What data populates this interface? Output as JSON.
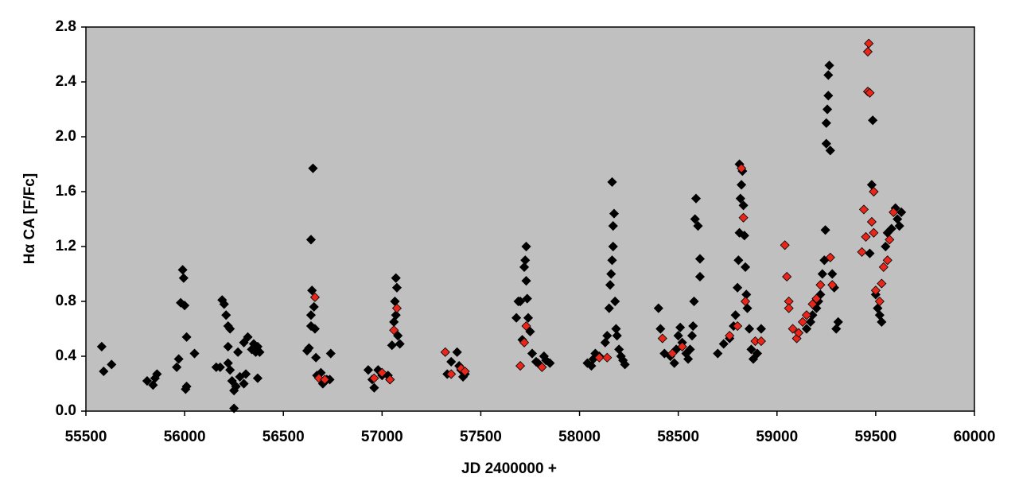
{
  "chart_data": {
    "type": "scatter",
    "x_label": "JD 2400000 +",
    "y_label": "Hα CA [F/Fc]",
    "xlim": [
      55500,
      60000
    ],
    "xticks": [
      55500,
      56000,
      56500,
      57000,
      57500,
      58000,
      58500,
      59000,
      59500,
      60000
    ],
    "ylim": [
      0,
      2.8
    ],
    "yticks": [
      {
        "value": 0,
        "label": "0.0"
      },
      0.4,
      0.8,
      1.2,
      1.6,
      {
        "value": 2,
        "label": "2.0"
      },
      2.4,
      2.8
    ],
    "background": "#c0c0c0",
    "series": [
      {
        "color": "#000000",
        "x": [
          55580,
          55590,
          55630,
          55810,
          55840,
          55860,
          55850,
          55960,
          55970,
          55980,
          55990,
          55995,
          56000,
          56010,
          56005,
          56010,
          56050,
          56160,
          56180,
          56190,
          56200,
          56210,
          56220,
          56230,
          56220,
          56230,
          56240,
          56250,
          56250,
          56260,
          56270,
          56280,
          56300,
          56310,
          56300,
          56320,
          56340,
          56350,
          56360,
          56370,
          56380,
          56370,
          56220,
          56620,
          56630,
          56640,
          56640,
          56645,
          56640,
          56650,
          56655,
          56660,
          56665,
          56670,
          56690,
          56700,
          56720,
          56740,
          56735,
          56930,
          56950,
          56960,
          56980,
          57000,
          57030,
          57040,
          57050,
          57060,
          57065,
          57070,
          57075,
          57070,
          57080,
          57090,
          57330,
          57350,
          57380,
          57390,
          57400,
          57410,
          57420,
          57680,
          57690,
          57700,
          57710,
          57720,
          57725,
          57730,
          57730,
          57735,
          57740,
          57750,
          57760,
          57780,
          57790,
          57820,
          57830,
          57850,
          58040,
          58060,
          58070,
          58080,
          58100,
          58130,
          58140,
          58150,
          58155,
          58160,
          58165,
          58170,
          58170,
          58175,
          58165,
          58180,
          58185,
          58190,
          58200,
          58210,
          58220,
          58230,
          58400,
          58410,
          58430,
          58460,
          58480,
          58490,
          58500,
          58510,
          58520,
          58540,
          58550,
          58560,
          58570,
          58575,
          58580,
          58585,
          58590,
          58600,
          58610,
          58610,
          58700,
          58730,
          58760,
          58780,
          58790,
          58800,
          58805,
          58810,
          58815,
          58820,
          58810,
          58825,
          58830,
          58835,
          58840,
          58845,
          58850,
          58860,
          58870,
          58880,
          58900,
          58920,
          59150,
          59170,
          59180,
          59200,
          59210,
          59220,
          59230,
          59240,
          59245,
          59250,
          59250,
          59255,
          59260,
          59260,
          59265,
          59270,
          59280,
          59290,
          59300,
          59310,
          59470,
          59480,
          59485,
          59490,
          59500,
          59510,
          59520,
          59530,
          59550,
          59560,
          59580,
          59600,
          59610,
          59620,
          59630
        ],
        "values": [
          0.47,
          0.29,
          0.34,
          0.22,
          0.19,
          0.27,
          0.24,
          0.32,
          0.38,
          0.79,
          1.03,
          0.97,
          0.77,
          0.54,
          0.16,
          0.18,
          0.42,
          0.32,
          0.32,
          0.81,
          0.78,
          0.7,
          0.62,
          0.6,
          0.35,
          0.3,
          0.22,
          0.15,
          0.02,
          0.18,
          0.43,
          0.25,
          0.5,
          0.27,
          0.2,
          0.54,
          0.45,
          0.49,
          0.43,
          0.47,
          0.43,
          0.24,
          0.47,
          0.44,
          0.46,
          0.62,
          0.7,
          0.88,
          1.25,
          1.77,
          0.76,
          0.6,
          0.39,
          0.26,
          0.28,
          0.2,
          0.23,
          0.42,
          0.23,
          0.3,
          0.23,
          0.17,
          0.3,
          0.26,
          0.26,
          0.23,
          0.48,
          0.65,
          0.8,
          0.97,
          0.9,
          0.7,
          0.55,
          0.49,
          0.27,
          0.36,
          0.43,
          0.33,
          0.3,
          0.25,
          0.27,
          0.68,
          0.8,
          0.8,
          0.52,
          1.05,
          1.1,
          1.2,
          0.95,
          0.82,
          0.68,
          0.58,
          0.42,
          0.36,
          0.35,
          0.4,
          0.37,
          0.35,
          0.35,
          0.33,
          0.38,
          0.42,
          0.4,
          0.5,
          0.55,
          0.75,
          0.92,
          1.0,
          1.1,
          1.2,
          1.35,
          1.44,
          1.67,
          0.8,
          0.6,
          0.55,
          0.45,
          0.4,
          0.37,
          0.34,
          0.75,
          0.6,
          0.42,
          0.4,
          0.35,
          0.45,
          0.55,
          0.61,
          0.5,
          0.42,
          0.38,
          0.45,
          0.55,
          0.62,
          0.8,
          1.4,
          1.55,
          1.35,
          1.11,
          0.98,
          0.42,
          0.49,
          0.53,
          0.62,
          0.7,
          0.9,
          1.1,
          1.3,
          1.55,
          1.65,
          1.8,
          1.75,
          1.5,
          1.28,
          1.05,
          0.85,
          0.75,
          0.6,
          0.45,
          0.38,
          0.42,
          0.6,
          0.6,
          0.65,
          0.7,
          0.75,
          0.8,
          0.85,
          1.0,
          1.1,
          1.32,
          1.95,
          2.1,
          2.2,
          2.3,
          2.45,
          2.52,
          1.9,
          1.0,
          0.9,
          0.6,
          0.65,
          1.15,
          1.65,
          2.12,
          1.6,
          0.85,
          0.75,
          0.7,
          0.65,
          1.2,
          1.3,
          1.33,
          1.48,
          1.4,
          1.35,
          1.45
        ]
      },
      {
        "color": "#e8261a",
        "x": [
          56660,
          56680,
          56710,
          56960,
          57000,
          57040,
          57060,
          57075,
          57320,
          57350,
          57400,
          57420,
          57700,
          57720,
          57730,
          57810,
          58100,
          58140,
          58420,
          58470,
          58520,
          58760,
          58800,
          58820,
          58830,
          58840,
          58890,
          58920,
          59040,
          59050,
          59060,
          59060,
          59080,
          59100,
          59110,
          59130,
          59150,
          59180,
          59200,
          59220,
          59270,
          59280,
          59430,
          59440,
          59450,
          59460,
          59460,
          59465,
          59470,
          59480,
          59490,
          59490,
          59500,
          59520,
          59530,
          59540,
          59560,
          59570,
          59590
        ],
        "values": [
          0.83,
          0.24,
          0.23,
          0.24,
          0.28,
          0.23,
          0.59,
          0.75,
          0.43,
          0.27,
          0.31,
          0.29,
          0.33,
          0.5,
          0.62,
          0.32,
          0.39,
          0.39,
          0.53,
          0.42,
          0.47,
          0.55,
          0.62,
          1.77,
          1.41,
          0.8,
          0.51,
          0.51,
          1.21,
          0.98,
          0.8,
          0.75,
          0.6,
          0.53,
          0.57,
          0.65,
          0.7,
          0.78,
          0.82,
          0.92,
          1.12,
          0.92,
          1.16,
          1.47,
          1.27,
          2.33,
          2.62,
          2.68,
          2.32,
          1.38,
          1.3,
          1.6,
          0.88,
          0.8,
          0.93,
          1.05,
          1.1,
          1.25,
          1.45
        ]
      }
    ]
  }
}
